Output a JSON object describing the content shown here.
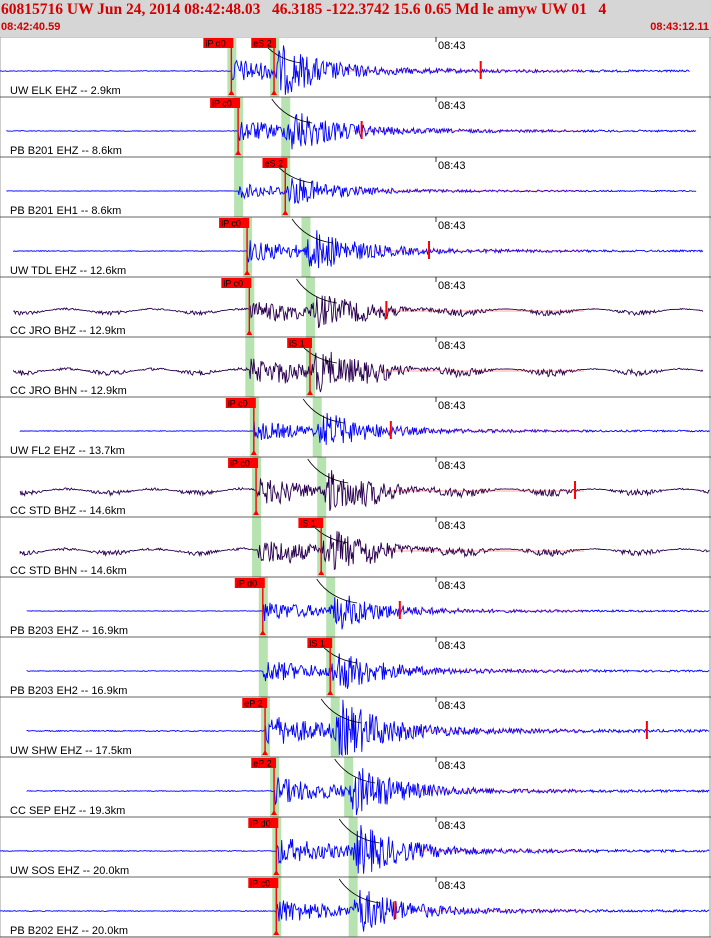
{
  "header": {
    "title": "60815716 UW Jun 24, 2014 08:42:48.03   46.3185 -122.3742 15.6 0.65 Md le amyw UW 01   4",
    "start_time": "08:42:40.59",
    "end_time": "08:43:12.11"
  },
  "colors": {
    "header_bg": "#d6d6d6",
    "header_text": "#d40000",
    "trace_short_period": "#0000ff",
    "trace_broadband": "#2a0050",
    "pick_box": "#ff0000",
    "phase_band": "#b6e3b0"
  },
  "chart_data": {
    "type": "line",
    "title": "60815716 UW Jun 24, 2014 08:42:48.03",
    "x_range_seconds": [
      0,
      31.52
    ],
    "minute_marker": {
      "label": "08:43",
      "t": 19.41
    },
    "series": [
      {
        "name": "UW ELK EHZ -- 2.9km",
        "trace_start": 0.0,
        "trace_end": 30.7,
        "p_pick": "iP d0",
        "p_t": 10.3,
        "s_pick": "eS 2",
        "s_t": 12.2,
        "kind": "sp",
        "amp": 1.0,
        "coda_mark": 21.4
      },
      {
        "name": "PB B201 EHZ -- 8.6km",
        "trace_start": 0.3,
        "trace_end": 31.0,
        "p_pick": "iP c0",
        "p_t": 10.6,
        "s_pick": "",
        "s_t": 12.7,
        "kind": "sp",
        "amp": 0.9,
        "coda_mark": 16.1
      },
      {
        "name": "PB B201 EH1 -- 8.6km",
        "trace_start": 0.3,
        "trace_end": 31.0,
        "p_pick": "",
        "p_t": 10.6,
        "s_pick": "eS 2",
        "s_t": 12.7,
        "kind": "sp",
        "amp": 0.6,
        "coda_mark": -1
      },
      {
        "name": "UW TDL EHZ -- 12.6km",
        "trace_start": 0.6,
        "trace_end": 31.3,
        "p_pick": "iP c0",
        "p_t": 11.0,
        "s_pick": "",
        "s_t": 13.6,
        "kind": "sp",
        "amp": 0.9,
        "coda_mark": 19.1
      },
      {
        "name": "CC JRO BHZ -- 12.9km",
        "trace_start": 0.6,
        "trace_end": 31.3,
        "p_pick": "iP c0",
        "p_t": 11.1,
        "s_pick": "",
        "s_t": 13.8,
        "kind": "bb",
        "amp": 0.8,
        "coda_mark": 17.2
      },
      {
        "name": "CC JRO BHN -- 12.9km",
        "trace_start": 0.6,
        "trace_end": 31.3,
        "p_pick": "",
        "p_t": 11.1,
        "s_pick": "iS 1",
        "s_t": 13.8,
        "kind": "bb",
        "amp": 1.0,
        "coda_mark": -1
      },
      {
        "name": "UW FL2 EHZ -- 13.7km",
        "trace_start": 0.9,
        "trace_end": 31.6,
        "p_pick": "iP c0",
        "p_t": 11.3,
        "s_pick": "",
        "s_t": 14.1,
        "kind": "sp",
        "amp": 0.8,
        "coda_mark": 17.4
      },
      {
        "name": "CC STD BHZ -- 14.6km",
        "trace_start": 0.9,
        "trace_end": 31.6,
        "p_pick": "iP c0",
        "p_t": 11.4,
        "s_pick": "",
        "s_t": 14.3,
        "kind": "bb",
        "amp": 1.0,
        "coda_mark": 25.6
      },
      {
        "name": "CC STD BHN -- 14.6km",
        "trace_start": 0.9,
        "trace_end": 31.6,
        "p_pick": "",
        "p_t": 11.4,
        "s_pick": "iS 1",
        "s_t": 14.3,
        "kind": "bb",
        "amp": 1.0,
        "coda_mark": -1
      },
      {
        "name": "PB B203 EHZ -- 16.9km",
        "trace_start": 1.2,
        "trace_end": 31.6,
        "p_pick": "iP d0",
        "p_t": 11.7,
        "s_pick": "",
        "s_t": 14.7,
        "kind": "sp",
        "amp": 0.8,
        "coda_mark": 17.8
      },
      {
        "name": "PB B203 EH2 -- 16.9km",
        "trace_start": 1.2,
        "trace_end": 31.6,
        "p_pick": "",
        "p_t": 11.7,
        "s_pick": "iS 1",
        "s_t": 14.7,
        "kind": "sp",
        "amp": 0.9,
        "coda_mark": -1
      },
      {
        "name": "UW SHW EHZ -- 17.5km",
        "trace_start": 1.2,
        "trace_end": 31.6,
        "p_pick": "eP 2",
        "p_t": 11.8,
        "s_pick": "",
        "s_t": 14.9,
        "kind": "sp",
        "amp": 1.3,
        "coda_mark": 28.8
      },
      {
        "name": "CC SEP EHZ -- 19.3km",
        "trace_start": 1.2,
        "trace_end": 31.6,
        "p_pick": "eP 2",
        "p_t": 12.2,
        "s_pick": "",
        "s_t": 15.5,
        "kind": "sp",
        "amp": 1.1,
        "coda_mark": -1
      },
      {
        "name": "UW SOS EHZ -- 20.0km",
        "trace_start": 0.0,
        "trace_end": 31.6,
        "p_pick": "iP d0",
        "p_t": 12.3,
        "s_pick": "",
        "s_t": 15.7,
        "kind": "sp",
        "amp": 1.1,
        "coda_mark": -1
      },
      {
        "name": "PB B202 EHZ -- 20.0km",
        "trace_start": 0.0,
        "trace_end": 31.6,
        "p_pick": "iP c0",
        "p_t": 12.3,
        "s_pick": "",
        "s_t": 15.7,
        "kind": "sp",
        "amp": 1.0,
        "coda_mark": 17.6
      }
    ],
    "grid": false,
    "legend": "none"
  }
}
